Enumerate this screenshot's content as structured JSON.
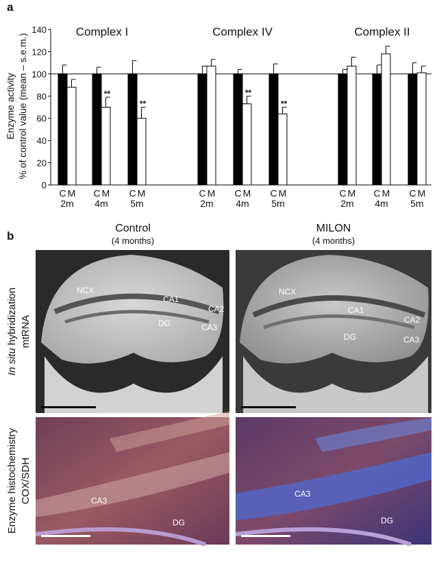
{
  "panel_labels": [
    "a",
    "b"
  ],
  "chart_data": {
    "type": "bar",
    "groups": [
      "Complex I",
      "Complex IV",
      "Complex II"
    ],
    "categories": [
      "2m",
      "4m",
      "5m",
      "2m",
      "4m",
      "5m",
      "2m",
      "4m",
      "5m"
    ],
    "series": [
      {
        "name": "C",
        "color": "#000000",
        "values": [
          100,
          100,
          100,
          100,
          100,
          100,
          100,
          100,
          100
        ],
        "errors": [
          8,
          6,
          12,
          7,
          4,
          9,
          4,
          8,
          10
        ]
      },
      {
        "name": "M",
        "color": "#ffffff",
        "values": [
          88,
          70,
          60,
          107,
          73,
          64,
          107,
          118,
          101
        ],
        "errors": [
          7,
          9,
          10,
          6,
          7,
          6,
          8,
          7,
          6
        ]
      }
    ],
    "y_label": [
      "Enzyme activity",
      "% of control value (mean – s.e.m.)"
    ],
    "ylim": [
      0,
      140
    ],
    "yticks": [
      0,
      20,
      40,
      60,
      80,
      100,
      120,
      140
    ],
    "reference_line": 100,
    "annotations": [
      {
        "text": "**",
        "series": 1,
        "index": 1
      },
      {
        "text": "**",
        "series": 1,
        "index": 2
      },
      {
        "text": "**",
        "series": 1,
        "index": 4
      },
      {
        "text": "**",
        "series": 1,
        "index": 5
      }
    ]
  },
  "panel_b": {
    "columns": [
      {
        "title": "Control",
        "subtitle": "(4 months)"
      },
      {
        "title": "MILON",
        "subtitle": "(4 months)"
      }
    ],
    "rows": [
      {
        "label": [
          "In situ",
          " hybridization"
        ],
        "sublabel": "mtRNA"
      },
      {
        "label": [
          "Enzyme histochemistry"
        ],
        "sublabel": "COX/SDH"
      }
    ],
    "images": [
      [
        [
          "NCX",
          "CA1",
          "CA2",
          "DG",
          "CA3"
        ],
        [
          "NCX",
          "CA1",
          "CA2",
          "DG",
          "CA3"
        ]
      ],
      [
        [
          "CA3",
          "DG"
        ],
        [
          "CA3",
          "DG"
        ]
      ]
    ]
  }
}
